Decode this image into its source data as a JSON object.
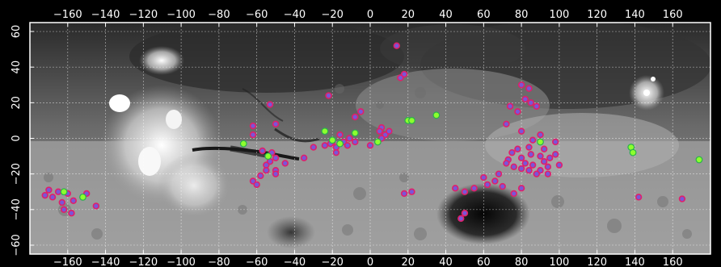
{
  "chart_data": {
    "type": "scatter",
    "title": "",
    "xlabel": "",
    "ylabel": "",
    "xlim": [
      -180,
      180
    ],
    "ylim": [
      -65,
      65
    ],
    "x_ticks": [
      "−160",
      "−140",
      "−120",
      "−100",
      "−80",
      "−60",
      "−40",
      "−20",
      "0",
      "20",
      "40",
      "60",
      "80",
      "100",
      "120",
      "140",
      "160"
    ],
    "y_ticks": [
      "60",
      "40",
      "20",
      "0",
      "−20",
      "−40",
      "−60"
    ],
    "grid": true,
    "background": "grayscale shaded-relief global surface map",
    "series": [
      {
        "color": "#e0206a",
        "fill": "#7a55d8",
        "points": [
          [
            14,
            52
          ],
          [
            18,
            36
          ],
          [
            16,
            34
          ],
          [
            -53,
            19
          ],
          [
            -22,
            24
          ],
          [
            -50,
            8
          ],
          [
            -62,
            7
          ],
          [
            -62,
            2
          ],
          [
            -57,
            -7
          ],
          [
            -52,
            -8
          ],
          [
            -50,
            -11
          ],
          [
            -53,
            -13
          ],
          [
            -55,
            -15
          ],
          [
            -50,
            -18
          ],
          [
            -55,
            -18
          ],
          [
            -58,
            -21
          ],
          [
            -62,
            -24
          ],
          [
            -60,
            -26
          ],
          [
            -50,
            -20
          ],
          [
            -45,
            -14
          ],
          [
            -35,
            -11
          ],
          [
            -30,
            -5
          ],
          [
            -24,
            -4
          ],
          [
            -20,
            -2
          ],
          [
            -8,
            -2
          ],
          [
            -8,
            12
          ],
          [
            -5,
            15
          ],
          [
            0,
            -4
          ],
          [
            6,
            6
          ],
          [
            8,
            2
          ],
          [
            5,
            4
          ],
          [
            10,
            4
          ],
          [
            -11,
            0
          ],
          [
            -14,
            -2
          ],
          [
            -18,
            -5
          ],
          [
            -18,
            -8
          ],
          [
            -21,
            -3
          ],
          [
            -16,
            2
          ],
          [
            -12,
            -4
          ],
          [
            6,
            0
          ],
          [
            80,
            30
          ],
          [
            84,
            28
          ],
          [
            82,
            22
          ],
          [
            85,
            20
          ],
          [
            88,
            18
          ],
          [
            74,
            18
          ],
          [
            78,
            15
          ],
          [
            72,
            8
          ],
          [
            80,
            4
          ],
          [
            86,
            -1
          ],
          [
            90,
            2
          ],
          [
            84,
            -5
          ],
          [
            78,
            -6
          ],
          [
            75,
            -8
          ],
          [
            73,
            -12
          ],
          [
            80,
            -11
          ],
          [
            82,
            -14
          ],
          [
            85,
            -9
          ],
          [
            90,
            -10
          ],
          [
            86,
            -15
          ],
          [
            92,
            -13
          ],
          [
            95,
            -11
          ],
          [
            98,
            -9
          ],
          [
            94,
            -16
          ],
          [
            90,
            -18
          ],
          [
            88,
            -20
          ],
          [
            84,
            -18
          ],
          [
            80,
            -17
          ],
          [
            76,
            -16
          ],
          [
            72,
            -14
          ],
          [
            68,
            -20
          ],
          [
            66,
            -24
          ],
          [
            70,
            -27
          ],
          [
            60,
            -22
          ],
          [
            62,
            -26
          ],
          [
            55,
            -28
          ],
          [
            50,
            -30
          ],
          [
            45,
            -28
          ],
          [
            76,
            -31
          ],
          [
            80,
            -28
          ],
          [
            98,
            -2
          ],
          [
            92,
            -6
          ],
          [
            100,
            -15
          ],
          [
            94,
            -20
          ],
          [
            48,
            -45
          ],
          [
            50,
            -42
          ],
          [
            22,
            -30
          ],
          [
            18,
            -31
          ],
          [
            -172,
            -32
          ],
          [
            -170,
            -29
          ],
          [
            -168,
            -33
          ],
          [
            -165,
            -30
          ],
          [
            -163,
            -36
          ],
          [
            -160,
            -31
          ],
          [
            -157,
            -35
          ],
          [
            -150,
            -31
          ],
          [
            -145,
            -38
          ],
          [
            -162,
            -40
          ],
          [
            -158,
            -42
          ],
          [
            142,
            -33
          ],
          [
            165,
            -34
          ]
        ]
      },
      {
        "color": "#29b04d",
        "fill": "#8cff2e",
        "points": [
          [
            -54,
            -10
          ],
          [
            -67,
            -3
          ],
          [
            -24,
            4
          ],
          [
            -20,
            -1
          ],
          [
            -16,
            -3
          ],
          [
            -8,
            3
          ],
          [
            4,
            -2
          ],
          [
            20,
            10
          ],
          [
            22,
            10
          ],
          [
            35,
            13
          ],
          [
            90,
            -2
          ],
          [
            138,
            -5
          ],
          [
            139,
            -8
          ],
          [
            174,
            -12
          ],
          [
            -162,
            -30
          ],
          [
            -152,
            -33
          ]
        ]
      }
    ]
  }
}
